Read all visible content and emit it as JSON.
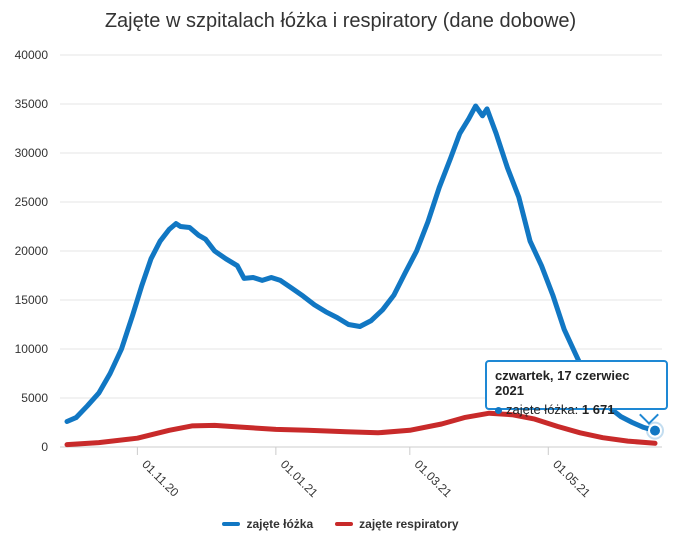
{
  "chart_data": {
    "type": "line",
    "title": "Zajęte w szpitalach łóżka i respiratory (dane dobowe)",
    "xlabel": "",
    "ylabel": "",
    "ylim": [
      0,
      40000
    ],
    "yticks": [
      "0",
      "5000",
      "10000",
      "15000",
      "20000",
      "25000",
      "30000",
      "35000",
      "40000"
    ],
    "ytick_values": [
      0,
      5000,
      10000,
      15000,
      20000,
      25000,
      30000,
      35000,
      40000
    ],
    "xlim": [
      "2020-10-01",
      "2021-06-17"
    ],
    "xticks": [
      {
        "label": "01.11.20",
        "date": "2020-11-01"
      },
      {
        "label": "01.01.21",
        "date": "2021-01-01"
      },
      {
        "label": "01.03.21",
        "date": "2021-03-01"
      },
      {
        "label": "01.05.21",
        "date": "2021-05-01"
      }
    ],
    "grid": true,
    "legend": "bottom",
    "series": [
      {
        "name": "zajęte łóżka",
        "color": "#1177c3",
        "points": [
          [
            "2020-10-01",
            2600
          ],
          [
            "2020-10-05",
            3000
          ],
          [
            "2020-10-10",
            4200
          ],
          [
            "2020-10-15",
            5500
          ],
          [
            "2020-10-20",
            7500
          ],
          [
            "2020-10-25",
            10000
          ],
          [
            "2020-10-30",
            13500
          ],
          [
            "2020-11-03",
            16500
          ],
          [
            "2020-11-07",
            19200
          ],
          [
            "2020-11-11",
            21000
          ],
          [
            "2020-11-15",
            22200
          ],
          [
            "2020-11-18",
            22800
          ],
          [
            "2020-11-20",
            22500
          ],
          [
            "2020-11-24",
            22400
          ],
          [
            "2020-11-28",
            21600
          ],
          [
            "2020-12-01",
            21200
          ],
          [
            "2020-12-05",
            20000
          ],
          [
            "2020-12-10",
            19200
          ],
          [
            "2020-12-15",
            18500
          ],
          [
            "2020-12-18",
            17200
          ],
          [
            "2020-12-22",
            17300
          ],
          [
            "2020-12-26",
            17000
          ],
          [
            "2020-12-30",
            17300
          ],
          [
            "2021-01-03",
            17000
          ],
          [
            "2021-01-08",
            16200
          ],
          [
            "2021-01-13",
            15400
          ],
          [
            "2021-01-18",
            14500
          ],
          [
            "2021-01-23",
            13800
          ],
          [
            "2021-01-28",
            13200
          ],
          [
            "2021-02-02",
            12500
          ],
          [
            "2021-02-07",
            12300
          ],
          [
            "2021-02-12",
            12900
          ],
          [
            "2021-02-17",
            14000
          ],
          [
            "2021-02-22",
            15500
          ],
          [
            "2021-02-27",
            17800
          ],
          [
            "2021-03-04",
            20000
          ],
          [
            "2021-03-09",
            23000
          ],
          [
            "2021-03-14",
            26500
          ],
          [
            "2021-03-19",
            29500
          ],
          [
            "2021-03-23",
            32000
          ],
          [
            "2021-03-27",
            33500
          ],
          [
            "2021-03-30",
            34800
          ],
          [
            "2021-04-02",
            33800
          ],
          [
            "2021-04-04",
            34500
          ],
          [
            "2021-04-08",
            32000
          ],
          [
            "2021-04-13",
            28500
          ],
          [
            "2021-04-18",
            25500
          ],
          [
            "2021-04-23",
            21000
          ],
          [
            "2021-04-28",
            18500
          ],
          [
            "2021-05-03",
            15500
          ],
          [
            "2021-05-08",
            12000
          ],
          [
            "2021-05-13",
            9500
          ],
          [
            "2021-05-18",
            7000
          ],
          [
            "2021-05-23",
            5200
          ],
          [
            "2021-05-28",
            4000
          ],
          [
            "2021-06-02",
            3100
          ],
          [
            "2021-06-07",
            2500
          ],
          [
            "2021-06-12",
            2000
          ],
          [
            "2021-06-17",
            1671
          ]
        ]
      },
      {
        "name": "zajęte respiratory",
        "color": "#c82a2a",
        "points": [
          [
            "2020-10-01",
            250
          ],
          [
            "2020-10-15",
            450
          ],
          [
            "2020-11-01",
            900
          ],
          [
            "2020-11-15",
            1700
          ],
          [
            "2020-11-25",
            2150
          ],
          [
            "2020-12-05",
            2200
          ],
          [
            "2020-12-15",
            2050
          ],
          [
            "2021-01-01",
            1800
          ],
          [
            "2021-01-15",
            1700
          ],
          [
            "2021-02-01",
            1550
          ],
          [
            "2021-02-15",
            1450
          ],
          [
            "2021-03-01",
            1700
          ],
          [
            "2021-03-15",
            2350
          ],
          [
            "2021-03-25",
            3000
          ],
          [
            "2021-04-05",
            3450
          ],
          [
            "2021-04-15",
            3300
          ],
          [
            "2021-04-25",
            2850
          ],
          [
            "2021-05-05",
            2100
          ],
          [
            "2021-05-15",
            1450
          ],
          [
            "2021-05-25",
            950
          ],
          [
            "2021-06-05",
            600
          ],
          [
            "2021-06-17",
            380
          ]
        ]
      }
    ],
    "tooltip": {
      "title": "czwartek, 17 czerwiec 2021",
      "series": "zajęte łóżka",
      "value_label": "1 671",
      "value": 1671,
      "date": "2021-06-17"
    }
  }
}
